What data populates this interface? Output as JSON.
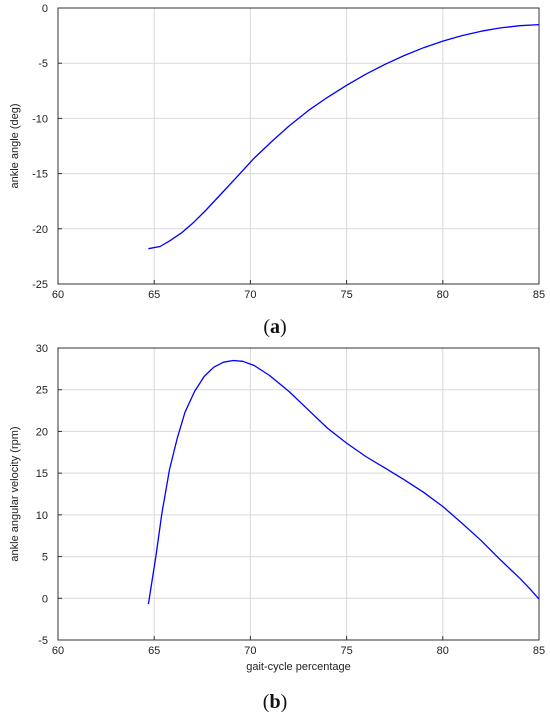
{
  "chart_data": [
    {
      "type": "line",
      "panel_label": "a",
      "xlabel": "",
      "ylabel": "ankle angle (deg)",
      "xlim": [
        60,
        85
      ],
      "ylim": [
        -25,
        0
      ],
      "xticks": [
        60,
        65,
        70,
        75,
        80,
        85
      ],
      "yticks": [
        0,
        -5,
        -10,
        -15,
        -20,
        -25
      ],
      "grid": true,
      "color": "#0000ff",
      "series": [
        {
          "x": [
            64.7,
            65.3,
            65.8,
            66.4,
            67.0,
            67.7,
            68.5,
            69.3,
            70.2,
            71.1,
            72.0,
            73.0,
            74.0,
            75.0,
            76.0,
            77.0,
            78.0,
            79.0,
            80.0,
            81.0,
            82.0,
            83.0,
            84.0,
            85.0
          ],
          "y": [
            -21.8,
            -21.6,
            -21.1,
            -20.4,
            -19.5,
            -18.3,
            -16.8,
            -15.3,
            -13.6,
            -12.1,
            -10.7,
            -9.3,
            -8.1,
            -7.0,
            -6.0,
            -5.1,
            -4.3,
            -3.6,
            -3.0,
            -2.5,
            -2.1,
            -1.8,
            -1.6,
            -1.5
          ]
        }
      ]
    },
    {
      "type": "line",
      "panel_label": "b",
      "xlabel": "gait-cycle percentage",
      "ylabel": "ankle angular velocity (rpm)",
      "xlim": [
        60,
        85
      ],
      "ylim": [
        -5,
        30
      ],
      "xticks": [
        60,
        65,
        70,
        75,
        80,
        85
      ],
      "yticks": [
        30,
        25,
        20,
        15,
        10,
        5,
        0,
        -5
      ],
      "grid": true,
      "color": "#0000ff",
      "series": [
        {
          "x": [
            64.7,
            65.1,
            65.4,
            65.8,
            66.2,
            66.6,
            67.1,
            67.6,
            68.1,
            68.6,
            69.1,
            69.6,
            70.2,
            71.0,
            72.0,
            73.0,
            74.0,
            75.0,
            76.0,
            77.0,
            78.0,
            79.0,
            80.0,
            81.0,
            82.0,
            83.0,
            84.0,
            84.5,
            85.0
          ],
          "y": [
            -0.7,
            5.2,
            10.2,
            15.5,
            19.2,
            22.3,
            24.8,
            26.6,
            27.7,
            28.3,
            28.5,
            28.4,
            27.9,
            26.7,
            24.8,
            22.6,
            20.4,
            18.6,
            17.0,
            15.6,
            14.2,
            12.7,
            11.0,
            9.0,
            6.9,
            4.6,
            2.4,
            1.2,
            -0.1
          ]
        }
      ]
    }
  ]
}
